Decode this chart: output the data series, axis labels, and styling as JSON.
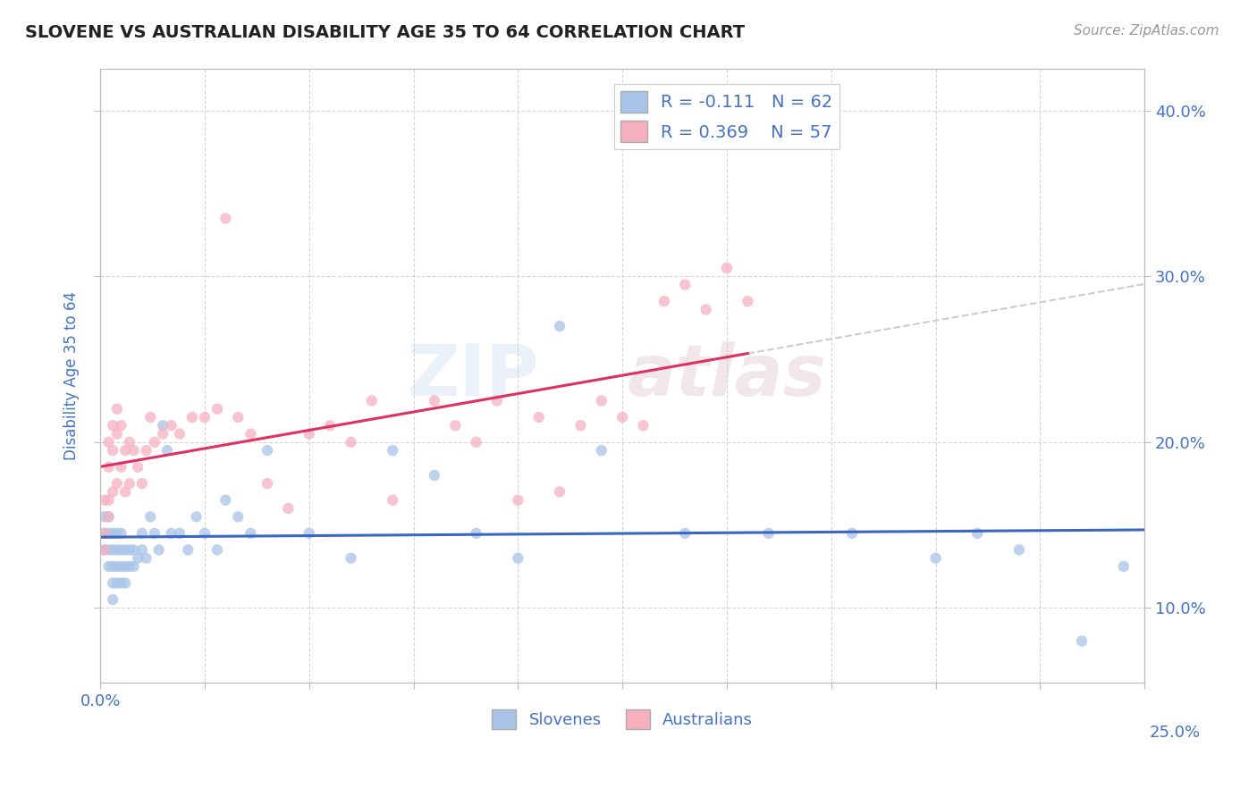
{
  "title": "SLOVENE VS AUSTRALIAN DISABILITY AGE 35 TO 64 CORRELATION CHART",
  "source": "Source: ZipAtlas.com",
  "ylabel": "Disability Age 35 to 64",
  "xlim": [
    0.0,
    0.25
  ],
  "ylim": [
    0.055,
    0.425
  ],
  "xticks": [
    0.0,
    0.025,
    0.05,
    0.075,
    0.1,
    0.125,
    0.15,
    0.175,
    0.2,
    0.225,
    0.25
  ],
  "yticks": [
    0.1,
    0.2,
    0.3,
    0.4
  ],
  "ytick_labels": [
    "10.0%",
    "20.0%",
    "30.0%",
    "40.0%"
  ],
  "xtick_labels_left": [
    "0.0%",
    "",
    "",
    "",
    "",
    "",
    "",
    "",
    "",
    "",
    ""
  ],
  "xtick_labels_right": [
    "",
    "",
    "",
    "",
    "",
    "",
    "",
    "",
    "",
    "",
    "25.0%"
  ],
  "color_slovene": "#a8c4e8",
  "color_australian": "#f5b0c0",
  "color_trend_slovene": "#3a66c4",
  "color_trend_australian": "#e03060",
  "color_text": "#4472c4",
  "background_color": "#ffffff",
  "grid_color": "#cccccc",
  "title_color": "#222222",
  "tick_label_color": "#4472c4",
  "slovene_x": [
    0.001,
    0.001,
    0.001,
    0.002,
    0.002,
    0.002,
    0.002,
    0.003,
    0.003,
    0.003,
    0.003,
    0.003,
    0.004,
    0.004,
    0.004,
    0.004,
    0.005,
    0.005,
    0.005,
    0.005,
    0.006,
    0.006,
    0.006,
    0.007,
    0.007,
    0.008,
    0.008,
    0.009,
    0.01,
    0.01,
    0.011,
    0.012,
    0.013,
    0.014,
    0.015,
    0.016,
    0.017,
    0.019,
    0.021,
    0.023,
    0.025,
    0.028,
    0.03,
    0.033,
    0.036,
    0.04,
    0.05,
    0.06,
    0.07,
    0.08,
    0.09,
    0.1,
    0.11,
    0.12,
    0.14,
    0.16,
    0.18,
    0.2,
    0.21,
    0.22,
    0.235,
    0.245
  ],
  "slovene_y": [
    0.155,
    0.145,
    0.135,
    0.155,
    0.145,
    0.135,
    0.125,
    0.145,
    0.135,
    0.125,
    0.115,
    0.105,
    0.145,
    0.135,
    0.125,
    0.115,
    0.145,
    0.135,
    0.125,
    0.115,
    0.135,
    0.125,
    0.115,
    0.135,
    0.125,
    0.135,
    0.125,
    0.13,
    0.145,
    0.135,
    0.13,
    0.155,
    0.145,
    0.135,
    0.21,
    0.195,
    0.145,
    0.145,
    0.135,
    0.155,
    0.145,
    0.135,
    0.165,
    0.155,
    0.145,
    0.195,
    0.145,
    0.13,
    0.195,
    0.18,
    0.145,
    0.13,
    0.27,
    0.195,
    0.145,
    0.145,
    0.145,
    0.13,
    0.145,
    0.135,
    0.08,
    0.125
  ],
  "australian_x": [
    0.001,
    0.001,
    0.001,
    0.002,
    0.002,
    0.002,
    0.002,
    0.003,
    0.003,
    0.003,
    0.004,
    0.004,
    0.004,
    0.005,
    0.005,
    0.006,
    0.006,
    0.007,
    0.007,
    0.008,
    0.009,
    0.01,
    0.011,
    0.012,
    0.013,
    0.015,
    0.017,
    0.019,
    0.022,
    0.025,
    0.028,
    0.03,
    0.033,
    0.036,
    0.04,
    0.045,
    0.05,
    0.055,
    0.06,
    0.065,
    0.07,
    0.08,
    0.085,
    0.09,
    0.095,
    0.1,
    0.105,
    0.11,
    0.115,
    0.12,
    0.125,
    0.13,
    0.135,
    0.14,
    0.145,
    0.15,
    0.155
  ],
  "australian_y": [
    0.165,
    0.145,
    0.135,
    0.2,
    0.185,
    0.165,
    0.155,
    0.21,
    0.195,
    0.17,
    0.22,
    0.205,
    0.175,
    0.21,
    0.185,
    0.195,
    0.17,
    0.2,
    0.175,
    0.195,
    0.185,
    0.175,
    0.195,
    0.215,
    0.2,
    0.205,
    0.21,
    0.205,
    0.215,
    0.215,
    0.22,
    0.335,
    0.215,
    0.205,
    0.175,
    0.16,
    0.205,
    0.21,
    0.2,
    0.225,
    0.165,
    0.225,
    0.21,
    0.2,
    0.225,
    0.165,
    0.215,
    0.17,
    0.21,
    0.225,
    0.215,
    0.21,
    0.285,
    0.295,
    0.28,
    0.305,
    0.285
  ]
}
